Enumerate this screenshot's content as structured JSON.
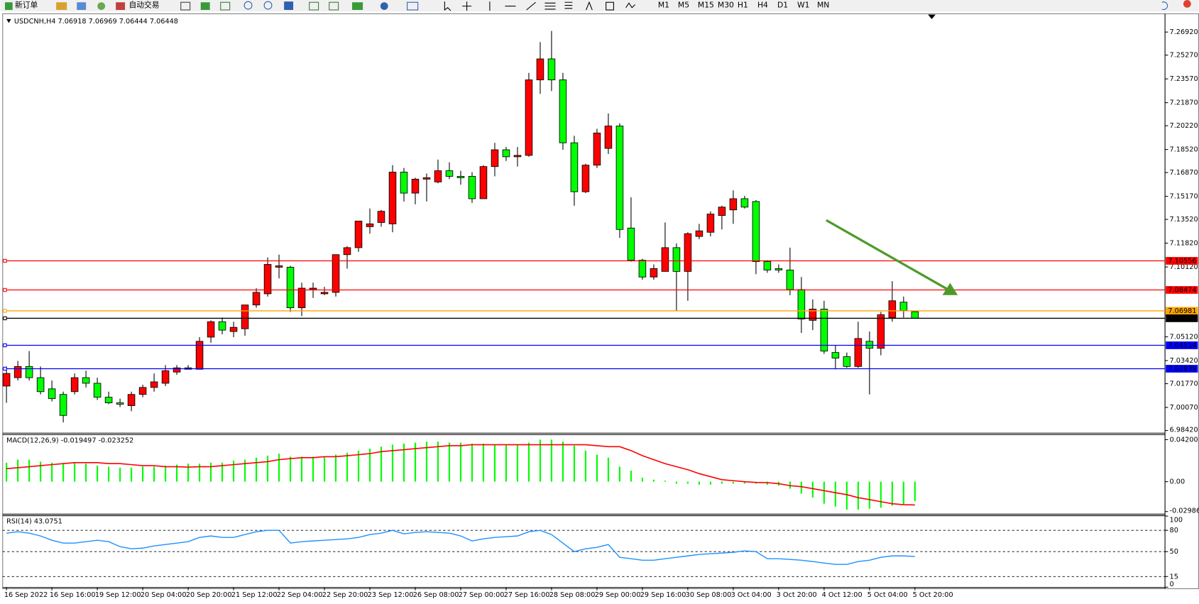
{
  "toolbar": {
    "new_order": "新订单",
    "auto_trading": "自动交易",
    "timeframes": [
      "M1",
      "M5",
      "M15",
      "M30",
      "H1",
      "H4",
      "D1",
      "W1",
      "MN"
    ]
  },
  "chart_data": [
    {
      "type": "candlestick",
      "title": "USDCNH,H4 7.06918 7.06969 7.06444 7.06448",
      "categories": [
        "16 Sep 2022",
        null,
        null,
        null,
        "16 Sep 16:00",
        null,
        null,
        null,
        "19 Sep 12:00",
        null,
        null,
        null,
        "20 Sep 04:00",
        null,
        null,
        null,
        "20 Sep 20:00",
        null,
        null,
        null,
        "21 Sep 12:00",
        null,
        null,
        null,
        "22 Sep 04:00",
        null,
        null,
        null,
        "22 Sep 20:00",
        null,
        null,
        null,
        "23 Sep 12:00",
        null,
        null,
        null,
        "26 Sep 08:00",
        null,
        null,
        null,
        "27 Sep 00:00",
        null,
        null,
        null,
        "27 Sep 16:00",
        null,
        null,
        null,
        "28 Sep 08:00",
        null,
        null,
        null,
        "29 Sep 00:00",
        null,
        null,
        null,
        "29 Sep 16:00",
        null,
        null,
        null,
        "30 Sep 08:00",
        null,
        null,
        null,
        "3 Oct 04:00",
        null,
        null,
        null,
        "3 Oct 20:00",
        null,
        null,
        null,
        "4 Oct 12:00",
        null,
        null,
        null,
        "5 Oct 04:00",
        null,
        null,
        null,
        "5 Oct 20:00"
      ],
      "series": [
        {
          "up_color": "#ff0000",
          "down_color": "#00ff00",
          "open": [
            7.016,
            7.022,
            7.03,
            7.022,
            7.014,
            7.01,
            7.012,
            7.022,
            7.018,
            7.008,
            7.004,
            7.002,
            7.01,
            7.015,
            7.018,
            7.026,
            7.028,
            7.028,
            7.051,
            7.062,
            7.055,
            7.057,
            7.074,
            7.082,
            7.101,
            7.101,
            7.072,
            7.085,
            7.082,
            7.083,
            7.11,
            7.115,
            7.13,
            7.133,
            7.132,
            7.169,
            7.154,
            7.164,
            7.162,
            7.17,
            7.166,
            7.166,
            7.15,
            7.173,
            7.185,
            7.18,
            7.181,
            7.235,
            7.25,
            7.235,
            7.19,
            7.155,
            7.174,
            7.186,
            7.202,
            7.129,
            7.106,
            7.094,
            7.098,
            7.115,
            7.098,
            7.123,
            7.126,
            7.138,
            7.142,
            7.15,
            7.148,
            7.105,
            7.1,
            7.099,
            7.085,
            7.063,
            7.071,
            7.04,
            7.037,
            7.03,
            7.048,
            7.043,
            7.065,
            7.076,
            7.06918
          ],
          "high": [
            7.03,
            7.034,
            7.041,
            7.03,
            7.02,
            7.012,
            7.025,
            7.027,
            7.022,
            7.012,
            7.007,
            7.012,
            7.017,
            7.025,
            7.031,
            7.031,
            7.031,
            7.051,
            7.063,
            7.065,
            7.062,
            7.074,
            7.086,
            7.108,
            7.11,
            7.102,
            7.09,
            7.09,
            7.087,
            7.11,
            7.116,
            7.134,
            7.143,
            7.142,
            7.174,
            7.172,
            7.165,
            7.168,
            7.178,
            7.176,
            7.17,
            7.169,
            7.174,
            7.19,
            7.187,
            7.187,
            7.24,
            7.262,
            7.27,
            7.24,
            7.195,
            7.175,
            7.2,
            7.211,
            7.204,
            7.151,
            7.107,
            7.103,
            7.133,
            7.118,
            7.126,
            7.132,
            7.141,
            7.145,
            7.156,
            7.152,
            7.149,
            7.106,
            7.103,
            7.115,
            7.094,
            7.078,
            7.077,
            7.045,
            7.04,
            7.062,
            7.055,
            7.069,
            7.091,
            7.08,
            7.06969
          ],
          "low": [
            7.004,
            7.02,
            7.02,
            7.01,
            7.005,
            6.99,
            7.01,
            7.015,
            7.006,
            7.003,
            7.001,
            6.998,
            7.008,
            7.012,
            7.016,
            7.024,
            7.028,
            7.028,
            7.047,
            7.053,
            7.051,
            7.052,
            7.072,
            7.08,
            7.093,
            7.069,
            7.066,
            7.079,
            7.081,
            7.08,
            7.1,
            7.112,
            7.125,
            7.13,
            7.126,
            7.148,
            7.146,
            7.148,
            7.161,
            7.164,
            7.16,
            7.147,
            7.15,
            7.166,
            7.177,
            7.173,
            7.18,
            7.225,
            7.227,
            7.185,
            7.145,
            7.154,
            7.172,
            7.182,
            7.122,
            7.105,
            7.092,
            7.092,
            7.098,
            7.07,
            7.077,
            7.121,
            7.123,
            7.128,
            7.132,
            7.143,
            7.096,
            7.097,
            7.097,
            7.081,
            7.054,
            7.056,
            7.039,
            7.028,
            7.029,
            7.029,
            7.01,
            7.038,
            7.062,
            7.065,
            7.06444
          ],
          "close": [
            7.025,
            7.03,
            7.022,
            7.012,
            7.007,
            6.995,
            7.022,
            7.018,
            7.008,
            7.004,
            7.003,
            7.01,
            7.015,
            7.019,
            7.027,
            7.029,
            7.029,
            7.048,
            7.062,
            7.056,
            7.058,
            7.074,
            7.083,
            7.103,
            7.102,
            7.072,
            7.086,
            7.086,
            7.083,
            7.11,
            7.115,
            7.134,
            7.132,
            7.141,
            7.169,
            7.154,
            7.164,
            7.165,
            7.17,
            7.166,
            7.165,
            7.15,
            7.173,
            7.185,
            7.18,
            7.181,
            7.235,
            7.25,
            7.235,
            7.19,
            7.155,
            7.174,
            7.197,
            7.202,
            7.128,
            7.106,
            7.094,
            7.1,
            7.115,
            7.098,
            7.125,
            7.127,
            7.139,
            7.144,
            7.15,
            7.144,
            7.105,
            7.099,
            7.099,
            7.085,
            7.064,
            7.071,
            7.041,
            7.036,
            7.03,
            7.05,
            7.043,
            7.067,
            7.077,
            7.07,
            7.06448
          ]
        }
      ],
      "levels": [
        {
          "value": 7.10556,
          "color": "#ff0000"
        },
        {
          "value": 7.08474,
          "color": "#ff0000"
        },
        {
          "value": 7.06981,
          "color": "#ffa500"
        },
        {
          "value": 7.06448,
          "color": "#000000"
        },
        {
          "value": 7.04514,
          "color": "#0000ff"
        },
        {
          "value": 7.02839,
          "color": "#0000ff"
        }
      ],
      "ylim": [
        6.9826,
        7.2801
      ],
      "yticks": [
        {
          "value": 7.2692,
          "label": "7.26920"
        },
        {
          "value": 7.2527,
          "label": "7.25270"
        },
        {
          "value": 7.2357,
          "label": "7.23570"
        },
        {
          "value": 7.2187,
          "label": "7.21870"
        },
        {
          "value": 7.2022,
          "label": "7.20220"
        },
        {
          "value": 7.1852,
          "label": "7.18520"
        },
        {
          "value": 7.1687,
          "label": "7.16870"
        },
        {
          "value": 7.1517,
          "label": "7.15170"
        },
        {
          "value": 7.1352,
          "label": "7.13520"
        },
        {
          "value": 7.1182,
          "label": "7.11820"
        },
        {
          "value": 7.1012,
          "label": "7.10120"
        },
        {
          "value": 7.0512,
          "label": "7.05120"
        },
        {
          "value": 7.0342,
          "label": "7.03420"
        },
        {
          "value": 7.0177,
          "label": "7.01770"
        },
        {
          "value": 7.0007,
          "label": "7.00070"
        },
        {
          "value": 6.9842,
          "label": "6.98420"
        }
      ]
    },
    {
      "type": "macd",
      "title": "MACD(12,26,9) -0.019497 -0.023252",
      "series": [
        {
          "kind": "bar",
          "color": "#00ff00",
          "values": [
            0.019,
            0.022,
            0.022,
            0.02,
            0.019,
            0.018,
            0.019,
            0.018,
            0.016,
            0.015,
            0.014,
            0.014,
            0.015,
            0.015,
            0.016,
            0.017,
            0.018,
            0.018,
            0.019,
            0.019,
            0.021,
            0.022,
            0.024,
            0.026,
            0.028,
            0.025,
            0.025,
            0.025,
            0.025,
            0.027,
            0.029,
            0.031,
            0.033,
            0.035,
            0.037,
            0.038,
            0.039,
            0.04,
            0.04,
            0.039,
            0.039,
            0.038,
            0.038,
            0.037,
            0.037,
            0.037,
            0.039,
            0.042,
            0.042,
            0.04,
            0.036,
            0.031,
            0.027,
            0.024,
            0.015,
            0.011,
            0.004,
            0.002,
            0.001,
            -0.002,
            -0.002,
            -0.003,
            -0.003,
            -0.002,
            -0.002,
            -0.002,
            -0.002,
            -0.003,
            -0.004,
            -0.007,
            -0.012,
            -0.016,
            -0.022,
            -0.025,
            -0.028,
            -0.028,
            -0.027,
            -0.026,
            -0.024,
            -0.023,
            -0.019497
          ]
        },
        {
          "kind": "line",
          "color": "#ff0000",
          "values": [
            0.013,
            0.014,
            0.015,
            0.016,
            0.017,
            0.018,
            0.019,
            0.019,
            0.019,
            0.018,
            0.018,
            0.017,
            0.016,
            0.016,
            0.015,
            0.015,
            0.0145,
            0.015,
            0.015,
            0.016,
            0.017,
            0.018,
            0.019,
            0.02,
            0.022,
            0.023,
            0.024,
            0.024,
            0.025,
            0.025,
            0.026,
            0.027,
            0.028,
            0.03,
            0.031,
            0.032,
            0.033,
            0.034,
            0.035,
            0.036,
            0.036,
            0.037,
            0.037,
            0.037,
            0.037,
            0.037,
            0.037,
            0.037,
            0.037,
            0.037,
            0.037,
            0.037,
            0.036,
            0.035,
            0.035,
            0.031,
            0.026,
            0.022,
            0.018,
            0.015,
            0.012,
            0.008,
            0.005,
            0.002,
            0.001,
            0.0,
            -0.0008,
            -0.001,
            -0.002,
            -0.004,
            -0.005,
            -0.007,
            -0.009,
            -0.011,
            -0.013,
            -0.016,
            -0.018,
            -0.02,
            -0.022,
            -0.023,
            -0.023252
          ]
        }
      ],
      "ylim": [
        -0.0321,
        0.0466
      ],
      "yticks": [
        0.042001,
        {
          "value": 0,
          "label": "0.00"
        },
        -0.029864
      ]
    },
    {
      "type": "line",
      "title": "RSI(14) 43.0751",
      "series": [
        {
          "color": "#1e90ff",
          "values": [
            76,
            78,
            76,
            72,
            66,
            62,
            62,
            64,
            66,
            64,
            57,
            54,
            55,
            58,
            60,
            62,
            64,
            70,
            72,
            70,
            70,
            74,
            78,
            80,
            80,
            62,
            64,
            65,
            66,
            67,
            68,
            70,
            74,
            76,
            80,
            75,
            77,
            78,
            77,
            76,
            72,
            65,
            68,
            70,
            71,
            72,
            78,
            80,
            74,
            62,
            50,
            54,
            56,
            60,
            42,
            40,
            38,
            38,
            40,
            42,
            44,
            46,
            47,
            48,
            49,
            51,
            50,
            40,
            40,
            39,
            38,
            36,
            34,
            32,
            32,
            36,
            38,
            42,
            44,
            44,
            43.0751
          ]
        }
      ],
      "ylim": [
        0,
        100
      ],
      "yticks": [
        100,
        80,
        50,
        15,
        0
      ],
      "dashed_levels": [
        80,
        50,
        15
      ]
    }
  ]
}
